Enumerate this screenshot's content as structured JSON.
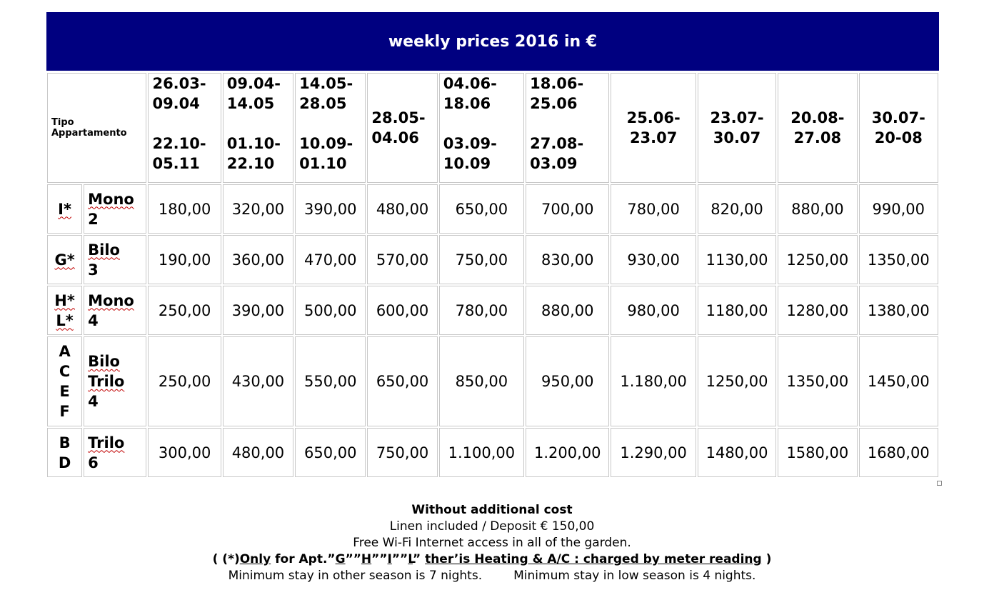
{
  "title": "weekly prices 2016 in €",
  "header": {
    "type_label_1": "Tipo",
    "type_label_2": "Appartamento",
    "periods": [
      {
        "line1a": "26.03-",
        "line1b": "09.04",
        "line2a": "22.10-",
        "line2b": "05.11"
      },
      {
        "line1a": "09.04-",
        "line1b": "14.05",
        "line2a": "01.10-",
        "line2b": "22.10"
      },
      {
        "line1a": "14.05-",
        "line1b": "28.05",
        "line2a": "10.09-",
        "line2b": "01.10"
      },
      {
        "line1a": "28.05-",
        "line1b": "04.06"
      },
      {
        "line1a": "04.06-",
        "line1b": "18.06",
        "line2a": "03.09-",
        "line2b": "10.09"
      },
      {
        "line1a": "18.06-",
        "line1b": "25.06",
        "line2a": "27.08-",
        "line2b": "03.09"
      },
      {
        "line1a": "25.06-",
        "line1b": "23.07"
      },
      {
        "line1a": "23.07-",
        "line1b": "30.07"
      },
      {
        "line1a": "20.08-",
        "line1b": "27.08"
      },
      {
        "line1a": "30.07-",
        "line1b": "20-08"
      }
    ]
  },
  "rows": [
    {
      "apt": [
        "I*"
      ],
      "kind": [
        "Mono",
        "2"
      ],
      "values": [
        "180,00",
        "320,00",
        "390,00",
        "480,00",
        "650,00",
        "700,00",
        "780,00",
        "820,00",
        "880,00",
        "990,00"
      ]
    },
    {
      "apt": [
        "G*"
      ],
      "kind": [
        "Bilo",
        "3"
      ],
      "values": [
        "190,00",
        "360,00",
        "470,00",
        "570,00",
        "750,00",
        "830,00",
        "930,00",
        "1130,00",
        "1250,00",
        "1350,00"
      ]
    },
    {
      "apt": [
        "H*",
        "L*"
      ],
      "kind": [
        "Mono",
        "4"
      ],
      "values": [
        "250,00",
        "390,00",
        "500,00",
        "600,00",
        "780,00",
        "880,00",
        "980,00",
        "1180,00",
        "1280,00",
        "1380,00"
      ]
    },
    {
      "apt": [
        "A",
        "C",
        "E",
        "F"
      ],
      "kind": [
        "Bilo",
        "Trilo",
        "4"
      ],
      "values": [
        "250,00",
        "430,00",
        "550,00",
        "650,00",
        "850,00",
        "950,00",
        "1.180,00",
        "1250,00",
        "1350,00",
        "1450,00"
      ]
    },
    {
      "apt": [
        "B",
        "D"
      ],
      "kind": [
        "Trilo",
        "6"
      ],
      "values": [
        "300,00",
        "480,00",
        "650,00",
        "750,00",
        "1.100,00",
        "1.200,00",
        "1.290,00",
        "1480,00",
        "1580,00",
        "1680,00"
      ]
    }
  ],
  "footer": {
    "heading": "Without additional cost",
    "line1": "Linen included / Deposit € 150,00",
    "line2": "Free Wi-Fi Internet access in all of the garden.",
    "note_open": "( (*)",
    "note_only": "Only",
    "note_for": " for Apt.”",
    "note_apt_g": "G",
    "note_sep1": "””",
    "note_apt_h": "H",
    "note_sep2": "””",
    "note_apt_i": "I",
    "note_sep3": "””",
    "note_apt_l": "L",
    "note_sep4": "”  ",
    "note_heating": "ther’is Heating & A/C : charged by meter reading",
    "note_close": " )",
    "min_other": "Minimum stay in other season is 7 nights.",
    "min_low": "Minimum stay in low season is 4 nights."
  }
}
